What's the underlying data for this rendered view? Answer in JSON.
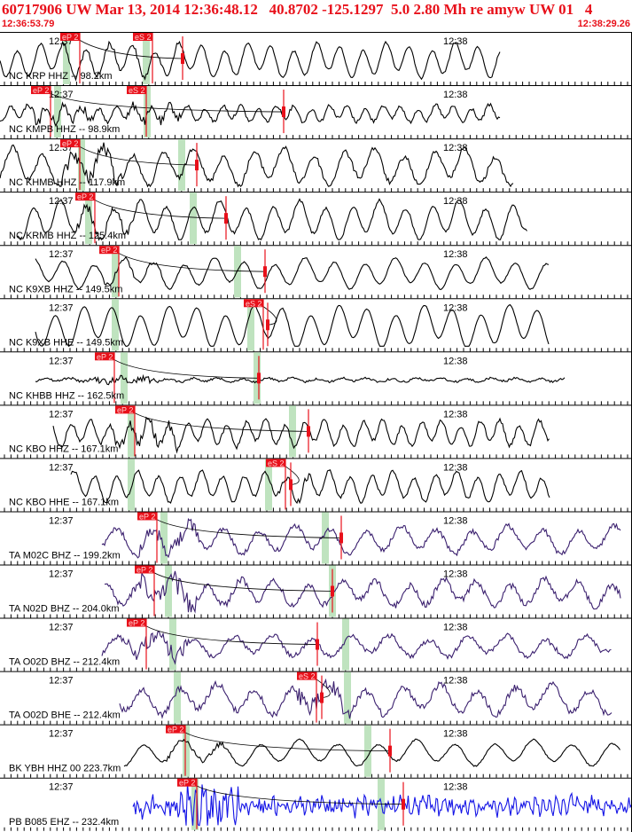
{
  "header": {
    "title": "60717906 UW Mar 13, 2014 12:36:48.12   40.8702 -125.1297  5.0 2.80 Mh re amyw UW 01   4",
    "start_time": "12:36:53.79",
    "end_time": "12:38:29.26"
  },
  "colors": {
    "header_text": "#e8101a",
    "pick_box": "#e8101a",
    "window_shade": "#bfe3bf",
    "trace_default": "#000000",
    "trace_ta": "#3a1f6e",
    "trace_pb": "#1414e6",
    "theory_curve": "#000000"
  },
  "traces": [
    {
      "label": "NC KRP HHZ -- 98.2km",
      "t37": "12:37",
      "t38": "12:38",
      "p_pick": "eP 2",
      "s_pick": "eS 2",
      "color": "#000000",
      "p_x": 68,
      "s_x": 150,
      "green": [
        75,
        165
      ],
      "red_mark": 206,
      "noise": 0.15,
      "amp": 0.7,
      "period": 26,
      "start": 0,
      "end": 565
    },
    {
      "label": "NC KMPB HHZ -- 98.9km",
      "t37": "12:37",
      "t38": "12:38",
      "p_pick": "eP 2",
      "s_pick": "eS 2",
      "color": "#000000",
      "p_x": 35,
      "s_x": 143,
      "green": [
        65,
        166
      ],
      "red_mark": 320,
      "noise": 0.25,
      "amp": 0.35,
      "period": 20,
      "start": 0,
      "end": 565
    },
    {
      "label": "NC KHMB HHZ -- 117.9km",
      "t37": "12:37",
      "t38": "12:38",
      "p_pick": "eP 2",
      "s_pick": "",
      "color": "#000000",
      "p_x": 68,
      "s_x": 0,
      "green": [
        92,
        205
      ],
      "red_mark": 222,
      "noise": 0.35,
      "amp": 0.75,
      "period": 34,
      "start": 0,
      "end": 580
    },
    {
      "label": "NC KRMB HHZ -- 125.4km",
      "t37": "12:37",
      "t38": "12:38",
      "p_pick": "eP 2",
      "s_pick": "",
      "color": "#000000",
      "p_x": 85,
      "s_x": 0,
      "green": [
        100,
        218
      ],
      "red_mark": 255,
      "noise": 0.2,
      "amp": 0.75,
      "period": 30,
      "start": 20,
      "end": 595
    },
    {
      "label": "NC K9XB HHZ -- 149.5km",
      "t37": "12:37",
      "t38": "12:38",
      "p_pick": "eP 2",
      "s_pick": "",
      "color": "#000000",
      "p_x": 112,
      "s_x": 0,
      "green": [
        130,
        268
      ],
      "red_mark": 299,
      "noise": 0.1,
      "amp": 0.6,
      "period": 34,
      "start": 40,
      "end": 620
    },
    {
      "label": "NC K9XB HHE -- 149.5km",
      "t37": "12:37",
      "t38": "12:38",
      "p_pick": "",
      "s_pick": "eS 2",
      "color": "#000000",
      "p_x": 0,
      "s_x": 275,
      "green": [
        130,
        283
      ],
      "red_mark": 302,
      "noise": 0.05,
      "amp": 0.85,
      "period": 32,
      "start": 40,
      "end": 620
    },
    {
      "label": "NC KHBB HHZ -- 162.5km",
      "t37": "12:37",
      "t38": "12:38",
      "p_pick": "eP 2",
      "s_pick": "",
      "color": "#000000",
      "p_x": 107,
      "s_x": 0,
      "green": [
        140,
        290
      ],
      "red_mark": 292,
      "noise": 0.15,
      "amp": 0.08,
      "period": 28,
      "start": 40,
      "end": 638
    },
    {
      "label": "NC KBO HHZ -- 167.1km",
      "t37": "12:37",
      "t38": "12:38",
      "p_pick": "eP 2",
      "s_pick": "",
      "color": "#000000",
      "p_x": 130,
      "s_x": 0,
      "green": [
        148,
        330
      ],
      "red_mark": 348,
      "noise": 0.25,
      "amp": 0.55,
      "period": 22,
      "start": 60,
      "end": 620
    },
    {
      "label": "NC KBO HHE -- 167.1km",
      "t37": "12:37",
      "t38": "12:38",
      "p_pick": "",
      "s_pick": "eS 2",
      "color": "#000000",
      "p_x": 0,
      "s_x": 300,
      "green": [
        148,
        303
      ],
      "red_mark": 328,
      "noise": 0.2,
      "amp": 0.6,
      "period": 24,
      "start": 80,
      "end": 620
    },
    {
      "label": "TA M02C BHZ -- 199.2km",
      "t37": "12:37",
      "t38": "12:38",
      "p_pick": "eP 2",
      "s_pick": "",
      "color": "#3a1f6e",
      "p_x": 155,
      "s_x": 0,
      "green": [
        185,
        367
      ],
      "red_mark": 385,
      "noise": 0.35,
      "amp": 0.55,
      "period": 40,
      "start": 115,
      "end": 700
    },
    {
      "label": "TA N02D BHZ -- 204.0km",
      "t37": "12:37",
      "t38": "12:38",
      "p_pick": "eP 2",
      "s_pick": "",
      "color": "#3a1f6e",
      "p_x": 152,
      "s_x": 0,
      "green": [
        190,
        375
      ],
      "red_mark": 375,
      "noise": 0.45,
      "amp": 0.55,
      "period": 38,
      "start": 118,
      "end": 700
    },
    {
      "label": "TA O02D BHZ -- 212.4km",
      "t37": "12:37",
      "t38": "12:38",
      "p_pick": "eP 2",
      "s_pick": "",
      "color": "#3a1f6e",
      "p_x": 143,
      "s_x": 0,
      "green": [
        195,
        390
      ],
      "red_mark": 358,
      "noise": 0.35,
      "amp": 0.45,
      "period": 44,
      "start": 115,
      "end": 690
    },
    {
      "label": "TA O02D BHE -- 212.4km",
      "t37": "12:37",
      "t38": "12:38",
      "p_pick": "",
      "s_pick": "eS 2",
      "color": "#3a1f6e",
      "p_x": 0,
      "s_x": 335,
      "green": [
        200,
        392
      ],
      "red_mark": 363,
      "noise": 0.45,
      "amp": 0.6,
      "period": 42,
      "start": 135,
      "end": 690
    },
    {
      "label": "BK YBH HHZ 00 223.7km",
      "t37": "12:37",
      "t38": "12:38",
      "p_pick": "eP 2",
      "s_pick": "",
      "color": "#000000",
      "p_x": 187,
      "s_x": 0,
      "green": [
        210,
        415
      ],
      "red_mark": 440,
      "noise": 0.1,
      "amp": 0.5,
      "period": 44,
      "start": 140,
      "end": 700
    },
    {
      "label": "PB B085 EHZ -- 232.4km",
      "t37": "12:37",
      "t38": "12:38",
      "p_pick": "eP 2",
      "s_pick": "",
      "color": "#1414e6",
      "p_x": 200,
      "s_x": 0,
      "green": [
        220,
        430
      ],
      "red_mark": 455,
      "noise": 1.0,
      "amp": 0.25,
      "period": 8,
      "start": 150,
      "end": 713
    }
  ]
}
